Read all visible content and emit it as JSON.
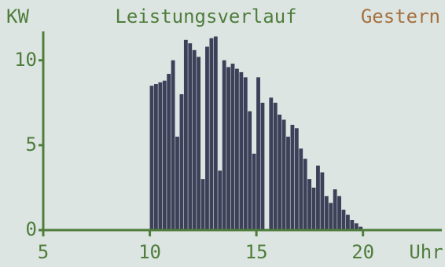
{
  "chart_data": {
    "type": "bar",
    "y_unit": "KW",
    "title": "Leistungsverlauf",
    "subtitle": "Gestern",
    "x_label": "Uhr",
    "x": [
      10.1,
      10.3,
      10.5,
      10.7,
      10.9,
      11.1,
      11.3,
      11.5,
      11.7,
      11.9,
      12.1,
      12.3,
      12.5,
      12.7,
      12.9,
      13.1,
      13.3,
      13.5,
      13.7,
      13.9,
      14.1,
      14.3,
      14.5,
      14.7,
      14.9,
      15.1,
      15.3,
      15.5,
      15.7,
      15.9,
      16.1,
      16.3,
      16.5,
      16.7,
      16.9,
      17.1,
      17.3,
      17.5,
      17.7,
      17.9,
      18.1,
      18.3,
      18.5,
      18.7,
      18.9,
      19.1,
      19.3,
      19.5,
      19.7,
      19.9
    ],
    "values": [
      8.5,
      8.6,
      8.7,
      8.8,
      9.2,
      10.0,
      5.5,
      8.0,
      11.2,
      11.0,
      10.6,
      10.2,
      3.0,
      10.8,
      11.3,
      11.4,
      3.5,
      10.0,
      9.6,
      9.8,
      9.5,
      9.3,
      9.0,
      7.0,
      4.5,
      9.0,
      7.5,
      0,
      7.8,
      7.5,
      6.8,
      6.5,
      5.5,
      6.2,
      6.0,
      4.8,
      4.2,
      3.0,
      2.5,
      3.8,
      3.4,
      2.0,
      1.6,
      2.4,
      2.0,
      1.2,
      0.9,
      0.6,
      0.4,
      0.2
    ],
    "bar_width": 0.2,
    "color": "#3c4058",
    "axis_color": "#4f7d3c",
    "subtitle_color": "#a5703e",
    "background": "#dde5e2",
    "xlim": [
      5,
      23.7
    ],
    "ylim": [
      0,
      11.7
    ],
    "xticks": [
      5,
      10,
      15,
      20
    ],
    "yticks": [
      0,
      5,
      10
    ]
  }
}
